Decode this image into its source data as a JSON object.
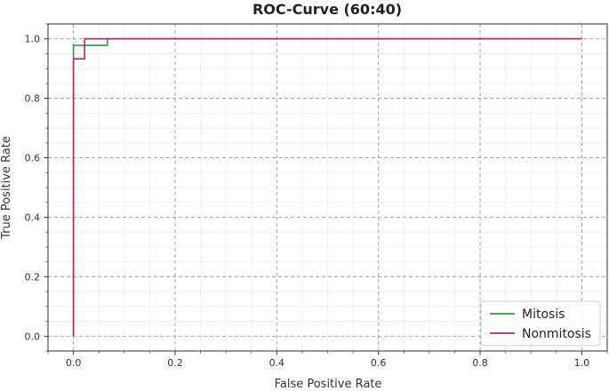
{
  "chart_data": {
    "type": "line",
    "title": "ROC-Curve (60:40)",
    "xlabel": "False Positive Rate",
    "ylabel": "True Positive Rate",
    "xlim": [
      -0.05,
      1.05
    ],
    "ylim": [
      -0.05,
      1.05
    ],
    "xticks": [
      "0.0",
      "0.2",
      "0.4",
      "0.6",
      "0.8",
      "1.0"
    ],
    "yticks": [
      "0.0",
      "0.2",
      "0.4",
      "0.6",
      "0.8",
      "1.0"
    ],
    "grid": "major dashed, minor solid",
    "legend": "bottom-right",
    "series": [
      {
        "name": "Mitosis",
        "color": "#2a9d3c",
        "x": [
          0.0,
          0.0,
          0.0,
          0.067,
          0.067,
          1.0
        ],
        "y": [
          0.0,
          0.933,
          0.978,
          0.978,
          1.0,
          1.0
        ]
      },
      {
        "name": "Nonmitosis",
        "color": "#c8215a",
        "x": [
          0.0,
          0.0,
          0.022,
          0.022,
          1.0
        ],
        "y": [
          0.0,
          0.933,
          0.933,
          1.0,
          1.0
        ]
      }
    ]
  }
}
